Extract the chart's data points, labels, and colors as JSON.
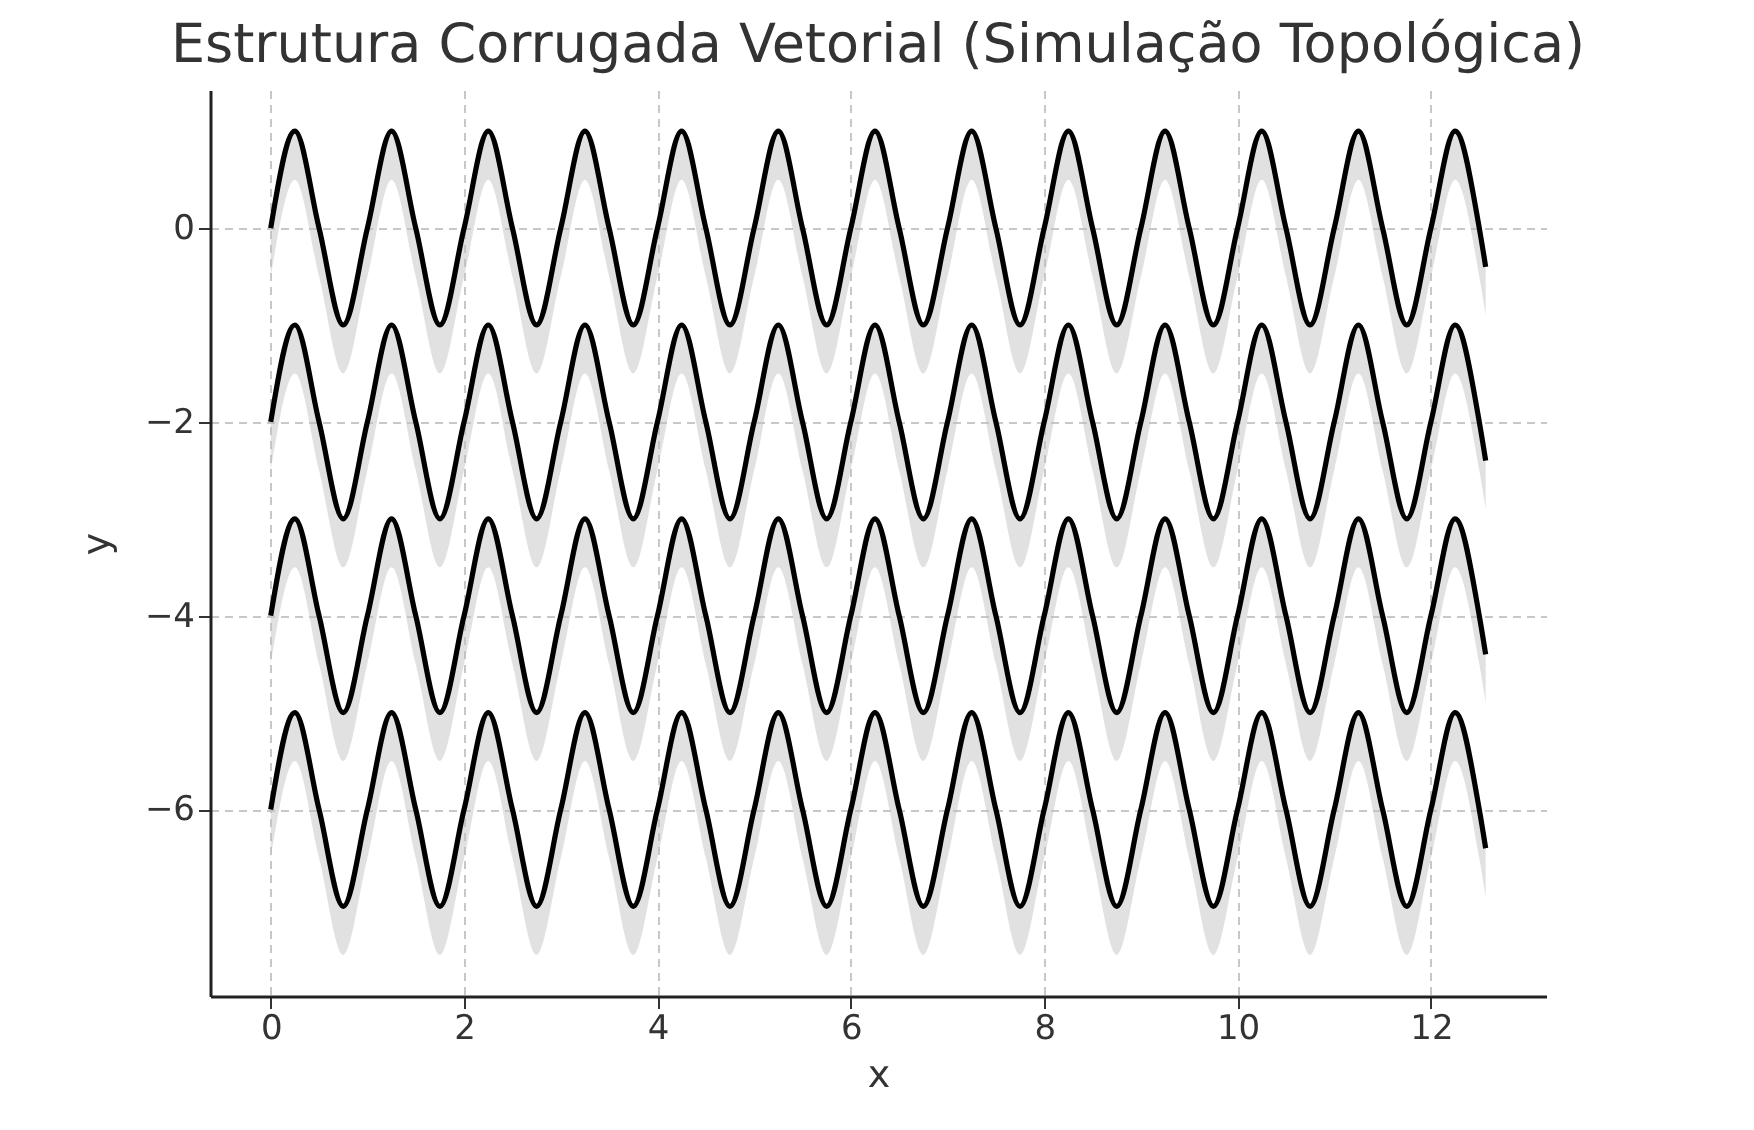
{
  "chart_data": {
    "type": "line",
    "title": "Estrutura Corrugada Vetorial (Simulação Topológica)",
    "xlabel": "x",
    "ylabel": "y",
    "x": [
      0,
      0.25,
      0.5,
      0.75,
      1,
      1.25,
      1.5,
      1.75,
      2,
      2.25,
      2.5,
      2.75,
      3,
      3.25,
      3.5,
      3.75,
      4,
      4.25,
      4.5,
      4.75,
      5,
      5.25,
      5.5,
      5.75,
      6,
      6.25,
      6.5,
      6.75,
      7,
      7.25,
      7.5,
      7.75,
      8,
      8.25,
      8.5,
      8.75,
      9,
      9.25,
      9.5,
      9.75,
      10,
      10.25,
      10.5,
      10.75,
      11,
      11.25,
      11.5,
      11.75,
      12,
      12.25,
      12.5,
      12.566
    ],
    "series": [
      {
        "color": "#000000",
        "values": [
          0,
          1,
          0,
          -1,
          0,
          1,
          0,
          -1,
          0,
          1,
          0,
          -1,
          0,
          1,
          0,
          -1,
          0,
          1,
          0,
          -1,
          0,
          1,
          0,
          -1,
          0,
          1,
          0,
          -1,
          0,
          1,
          0,
          -1,
          0,
          1,
          0,
          -1,
          0,
          1,
          0,
          -1,
          0,
          1,
          0,
          -1,
          0,
          1,
          0,
          -1,
          0,
          1,
          0,
          -0.4
        ],
        "upper": [
          0,
          1,
          0,
          -1,
          0,
          1,
          0,
          -1,
          0,
          1,
          0,
          -1,
          0,
          1,
          0,
          -1,
          0,
          1,
          0,
          -1,
          0,
          1,
          0,
          -1,
          0,
          1,
          0,
          -1,
          0,
          1,
          0,
          -1,
          0,
          1,
          0,
          -1,
          0,
          1,
          0,
          -1,
          0,
          1,
          0,
          -1,
          0,
          1,
          0,
          -1,
          0,
          1,
          0,
          -0.4
        ],
        "lower": [
          -0.5,
          0.5,
          -0.5,
          -1.5,
          -0.5,
          0.5,
          -0.5,
          -1.5,
          -0.5,
          0.5,
          -0.5,
          -1.5,
          -0.5,
          0.5,
          -0.5,
          -1.5,
          -0.5,
          0.5,
          -0.5,
          -1.5,
          -0.5,
          0.5,
          -0.5,
          -1.5,
          -0.5,
          0.5,
          -0.5,
          -1.5,
          -0.5,
          0.5,
          -0.5,
          -1.5,
          -0.5,
          0.5,
          -0.5,
          -1.5,
          -0.5,
          0.5,
          -0.5,
          -1.5,
          -0.5,
          0.5,
          -0.5,
          -1.5,
          -0.5,
          0.5,
          -0.5,
          -1.5,
          -0.5,
          0.5,
          -0.5,
          -0.9
        ]
      },
      {
        "color": "#000000",
        "values": [
          -2,
          -1,
          -2,
          -3,
          -2,
          -1,
          -2,
          -3,
          -2,
          -1,
          -2,
          -3,
          -2,
          -1,
          -2,
          -3,
          -2,
          -1,
          -2,
          -3,
          -2,
          -1,
          -2,
          -3,
          -2,
          -1,
          -2,
          -3,
          -2,
          -1,
          -2,
          -3,
          -2,
          -1,
          -2,
          -3,
          -2,
          -1,
          -2,
          -3,
          -2,
          -1,
          -2,
          -3,
          -2,
          -1,
          -2,
          -3,
          -2,
          -1,
          -2,
          -2.4
        ],
        "upper": [
          -2,
          -1,
          -2,
          -3,
          -2,
          -1,
          -2,
          -3,
          -2,
          -1,
          -2,
          -3,
          -2,
          -1,
          -2,
          -3,
          -2,
          -1,
          -2,
          -3,
          -2,
          -1,
          -2,
          -3,
          -2,
          -1,
          -2,
          -3,
          -2,
          -1,
          -2,
          -3,
          -2,
          -1,
          -2,
          -3,
          -2,
          -1,
          -2,
          -3,
          -2,
          -1,
          -2,
          -3,
          -2,
          -1,
          -2,
          -3,
          -2,
          -1,
          -2,
          -2.4
        ],
        "lower": [
          -2.5,
          -1.5,
          -2.5,
          -3.5,
          -2.5,
          -1.5,
          -2.5,
          -3.5,
          -2.5,
          -1.5,
          -2.5,
          -3.5,
          -2.5,
          -1.5,
          -2.5,
          -3.5,
          -2.5,
          -1.5,
          -2.5,
          -3.5,
          -2.5,
          -1.5,
          -2.5,
          -3.5,
          -2.5,
          -1.5,
          -2.5,
          -3.5,
          -2.5,
          -1.5,
          -2.5,
          -3.5,
          -2.5,
          -1.5,
          -2.5,
          -3.5,
          -2.5,
          -1.5,
          -2.5,
          -3.5,
          -2.5,
          -1.5,
          -2.5,
          -3.5,
          -2.5,
          -1.5,
          -2.5,
          -3.5,
          -2.5,
          -1.5,
          -2.5,
          -2.9
        ]
      },
      {
        "color": "#000000",
        "values": [
          -4,
          -3,
          -4,
          -5,
          -4,
          -3,
          -4,
          -5,
          -4,
          -3,
          -4,
          -5,
          -4,
          -3,
          -4,
          -5,
          -4,
          -3,
          -4,
          -5,
          -4,
          -3,
          -4,
          -5,
          -4,
          -3,
          -4,
          -5,
          -4,
          -3,
          -4,
          -5,
          -4,
          -3,
          -4,
          -5,
          -4,
          -3,
          -4,
          -5,
          -4,
          -3,
          -4,
          -5,
          -4,
          -3,
          -4,
          -5,
          -4,
          -3,
          -4,
          -4.4
        ],
        "upper": [
          -4,
          -3,
          -4,
          -5,
          -4,
          -3,
          -4,
          -5,
          -4,
          -3,
          -4,
          -5,
          -4,
          -3,
          -4,
          -5,
          -4,
          -3,
          -4,
          -5,
          -4,
          -3,
          -4,
          -5,
          -4,
          -3,
          -4,
          -5,
          -4,
          -3,
          -4,
          -5,
          -4,
          -3,
          -4,
          -5,
          -4,
          -3,
          -4,
          -5,
          -4,
          -3,
          -4,
          -5,
          -4,
          -3,
          -4,
          -5,
          -4,
          -3,
          -4,
          -4.4
        ],
        "lower": [
          -4.5,
          -3.5,
          -4.5,
          -5.5,
          -4.5,
          -3.5,
          -4.5,
          -5.5,
          -4.5,
          -3.5,
          -4.5,
          -5.5,
          -4.5,
          -3.5,
          -4.5,
          -5.5,
          -4.5,
          -3.5,
          -4.5,
          -5.5,
          -4.5,
          -3.5,
          -4.5,
          -5.5,
          -4.5,
          -3.5,
          -4.5,
          -5.5,
          -4.5,
          -3.5,
          -4.5,
          -5.5,
          -4.5,
          -3.5,
          -4.5,
          -5.5,
          -4.5,
          -3.5,
          -4.5,
          -5.5,
          -4.5,
          -3.5,
          -4.5,
          -5.5,
          -4.5,
          -3.5,
          -4.5,
          -5.5,
          -4.5,
          -3.5,
          -4.5,
          -4.9
        ]
      },
      {
        "color": "#000000",
        "values": [
          -6,
          -5,
          -6,
          -7,
          -6,
          -5,
          -6,
          -7,
          -6,
          -5,
          -6,
          -7,
          -6,
          -5,
          -6,
          -7,
          -6,
          -5,
          -6,
          -7,
          -6,
          -5,
          -6,
          -7,
          -6,
          -5,
          -6,
          -7,
          -6,
          -5,
          -6,
          -7,
          -6,
          -5,
          -6,
          -7,
          -6,
          -5,
          -6,
          -7,
          -6,
          -5,
          -6,
          -7,
          -6,
          -5,
          -6,
          -7,
          -6,
          -5,
          -6,
          -6.4
        ],
        "upper": [
          -6,
          -5,
          -6,
          -7,
          -6,
          -5,
          -6,
          -7,
          -6,
          -5,
          -6,
          -7,
          -6,
          -5,
          -6,
          -7,
          -6,
          -5,
          -6,
          -7,
          -6,
          -5,
          -6,
          -7,
          -6,
          -5,
          -6,
          -7,
          -6,
          -5,
          -6,
          -7,
          -6,
          -5,
          -6,
          -7,
          -6,
          -5,
          -6,
          -7,
          -6,
          -5,
          -6,
          -7,
          -6,
          -5,
          -6,
          -7,
          -6,
          -5,
          -6,
          -6.4
        ],
        "lower": [
          -6.5,
          -5.5,
          -6.5,
          -7.5,
          -6.5,
          -5.5,
          -6.5,
          -7.5,
          -6.5,
          -5.5,
          -6.5,
          -7.5,
          -6.5,
          -5.5,
          -6.5,
          -7.5,
          -6.5,
          -5.5,
          -6.5,
          -7.5,
          -6.5,
          -5.5,
          -6.5,
          -7.5,
          -6.5,
          -5.5,
          -6.5,
          -7.5,
          -6.5,
          -5.5,
          -6.5,
          -7.5,
          -6.5,
          -5.5,
          -6.5,
          -7.5,
          -6.5,
          -5.5,
          -6.5,
          -7.5,
          -6.5,
          -5.5,
          -6.5,
          -7.5,
          -6.5,
          -5.5,
          -6.5,
          -7.5,
          -6.5,
          -5.5,
          -6.5,
          -6.9
        ]
      }
    ],
    "xlim": [
      -0.628,
      13.19
    ],
    "ylim": [
      -7.925,
      1.425
    ],
    "xticks": [
      0,
      2,
      4,
      6,
      8,
      10,
      12
    ],
    "yticks": [
      -6,
      -4,
      -2,
      0
    ],
    "grid": true,
    "line_style": "solid"
  }
}
